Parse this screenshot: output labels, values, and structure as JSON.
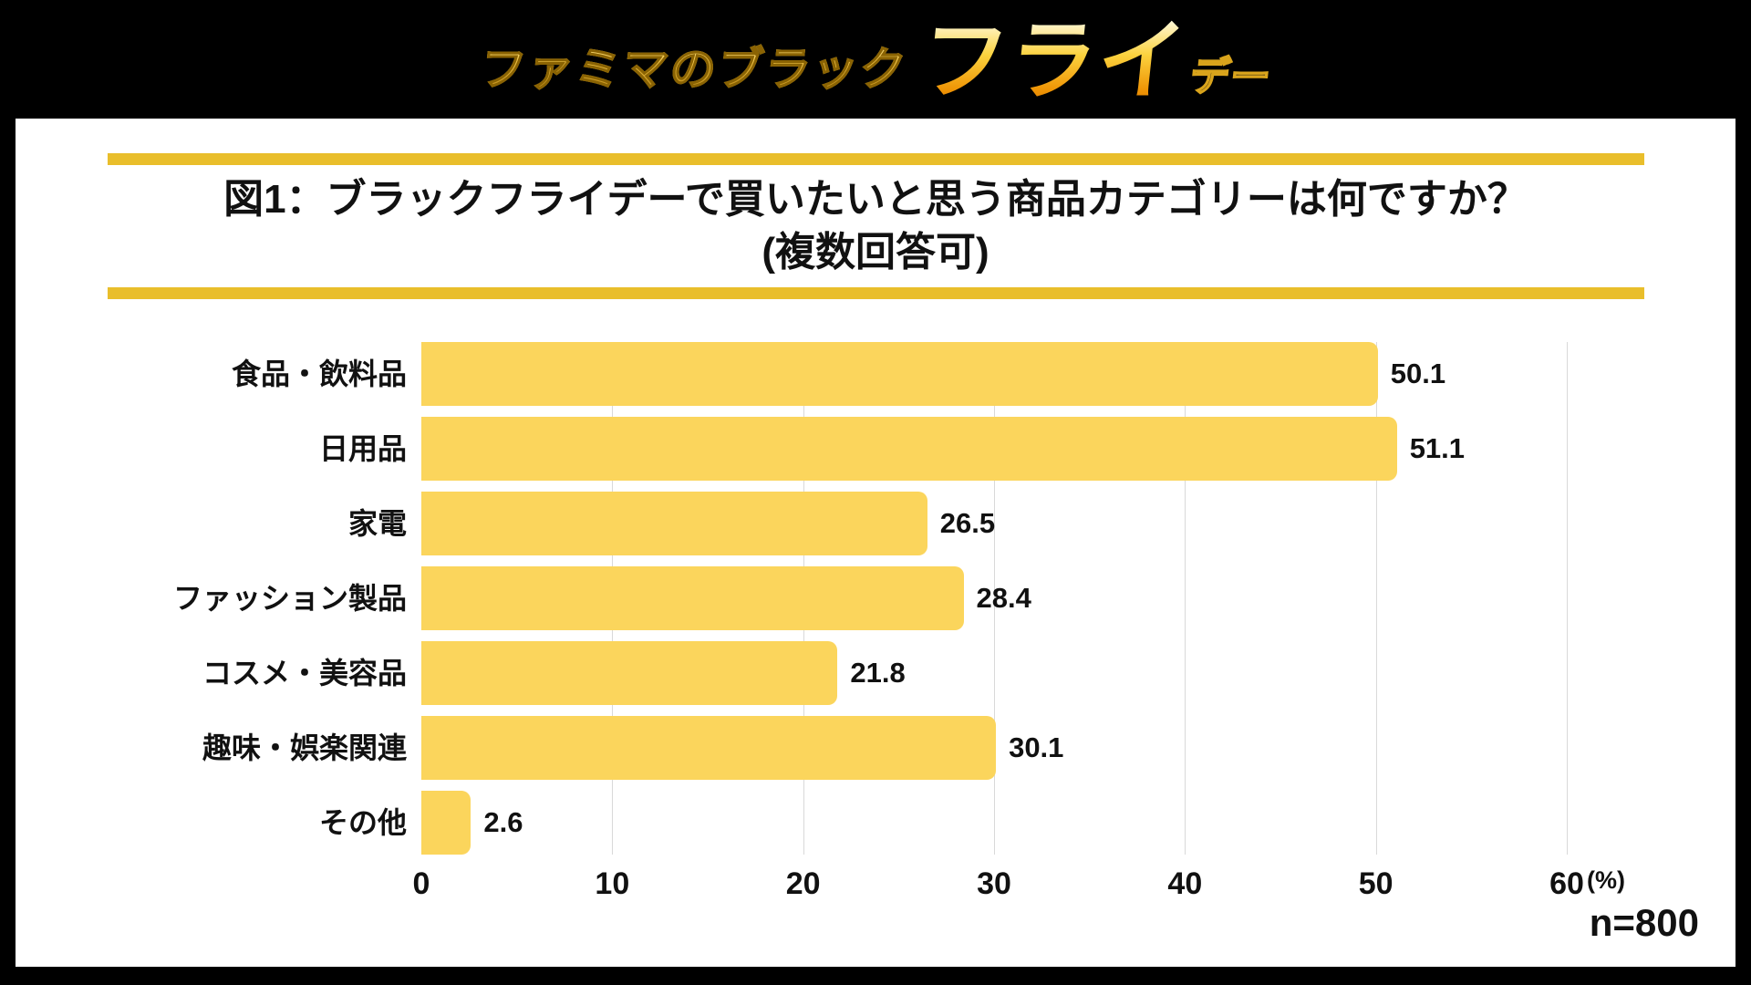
{
  "header": {
    "logo_part1": "ファミマのブラック",
    "logo_part2": "フライ",
    "logo_part3": "デー"
  },
  "title": {
    "line1": "図1：ブラックフライデーで買いたいと思う商品カテゴリーは何ですか？",
    "line2": "(複数回答可)"
  },
  "chart_data": {
    "type": "bar",
    "orientation": "horizontal",
    "title": "図1：ブラックフライデーで買いたいと思う商品カテゴリーは何ですか？(複数回答可)",
    "categories": [
      "食品・飲料品",
      "日用品",
      "家電",
      "ファッション製品",
      "コスメ・美容品",
      "趣味・娯楽関連",
      "その他"
    ],
    "values": [
      50.1,
      51.1,
      26.5,
      28.4,
      21.8,
      30.1,
      2.6
    ],
    "xlim": [
      0,
      60
    ],
    "x_ticks": [
      0,
      10,
      20,
      30,
      40,
      50,
      60
    ],
    "x_unit": "(%)",
    "grid": true,
    "legend": false,
    "value_labels_shown": true
  },
  "footer": {
    "sample_size": "n=800"
  },
  "colors": {
    "bar_yellow": "#FBD55C",
    "accent_gold": "#E9BE2B",
    "gridline": "#D9D9D9",
    "background_black": "#000000",
    "text": "#111111"
  }
}
